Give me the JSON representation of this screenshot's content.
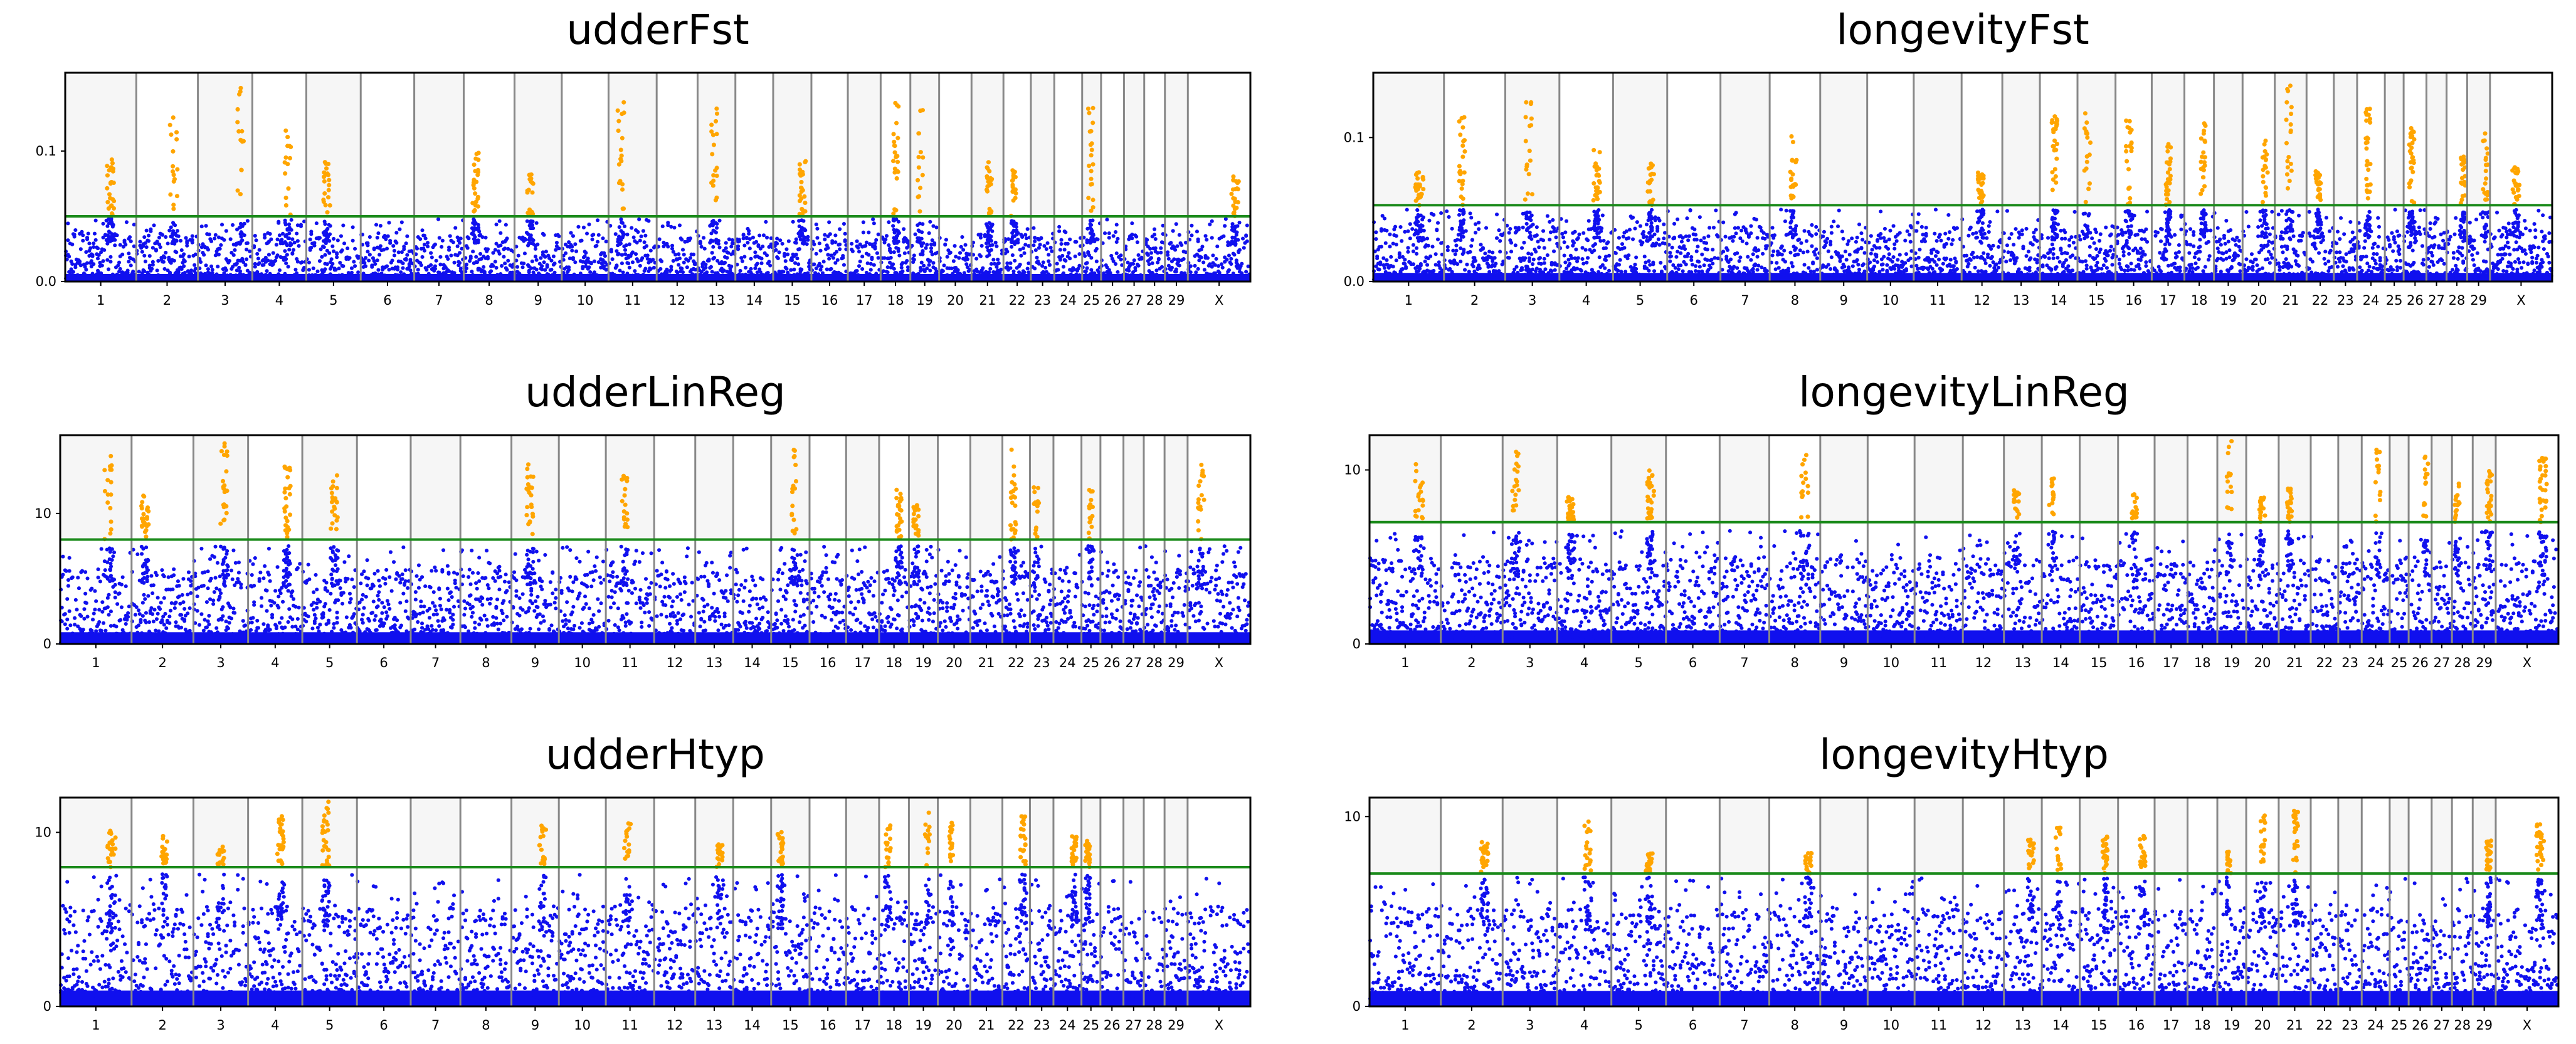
{
  "figure": {
    "colors": {
      "below_threshold": "#1010ee",
      "above_threshold": "#ffa500",
      "threshold_line": "#1a8a1a",
      "alt_chromosome_band": "#f6f6f6",
      "separator": "#888888"
    }
  },
  "chart_data": [
    {
      "type": "scatter",
      "title": "udderFst",
      "xlabel": "",
      "ylabel": "",
      "categories": [
        "1",
        "2",
        "3",
        "4",
        "5",
        "6",
        "7",
        "8",
        "9",
        "10",
        "11",
        "12",
        "13",
        "14",
        "15",
        "16",
        "17",
        "18",
        "19",
        "20",
        "21",
        "22",
        "23",
        "24",
        "25",
        "26",
        "27",
        "28",
        "29",
        "X"
      ],
      "chromosome_relative_lengths": [
        158,
        137,
        121,
        120,
        121,
        119,
        110,
        113,
        105,
        104,
        107,
        91,
        84,
        84,
        85,
        81,
        73,
        66,
        64,
        72,
        71,
        61,
        52,
        62,
        42,
        51,
        45,
        46,
        51,
        139
      ],
      "yticks": [
        "0.0",
        "0.1"
      ],
      "ylim": [
        0,
        0.16
      ],
      "threshold": 0.05,
      "grid": false,
      "typical_max": 0.048,
      "peak_chromosomes": [
        "1",
        "2",
        "3",
        "4",
        "5",
        "8",
        "9",
        "11",
        "13",
        "15",
        "18",
        "19",
        "21",
        "22",
        "25",
        "X"
      ]
    },
    {
      "type": "scatter",
      "title": "longevityFst",
      "xlabel": "",
      "ylabel": "",
      "categories": [
        "1",
        "2",
        "3",
        "4",
        "5",
        "6",
        "7",
        "8",
        "9",
        "10",
        "11",
        "12",
        "13",
        "14",
        "15",
        "16",
        "17",
        "18",
        "19",
        "20",
        "21",
        "22",
        "23",
        "24",
        "25",
        "26",
        "27",
        "28",
        "29",
        "X"
      ],
      "chromosome_relative_lengths": [
        158,
        137,
        121,
        120,
        121,
        119,
        110,
        113,
        105,
        104,
        107,
        91,
        84,
        84,
        85,
        81,
        73,
        66,
        64,
        72,
        71,
        61,
        52,
        62,
        42,
        51,
        45,
        46,
        51,
        139
      ],
      "yticks": [
        "0.0",
        "0.1"
      ],
      "ylim": [
        0,
        0.145
      ],
      "threshold": 0.053,
      "grid": false,
      "typical_max": 0.05,
      "peak_chromosomes": [
        "1",
        "2",
        "3",
        "4",
        "5",
        "8",
        "12",
        "14",
        "15",
        "16",
        "17",
        "18",
        "20",
        "21",
        "22",
        "24",
        "26",
        "28",
        "29",
        "X"
      ]
    },
    {
      "type": "scatter",
      "title": "udderLinReg",
      "xlabel": "",
      "ylabel": "",
      "categories": [
        "1",
        "2",
        "3",
        "4",
        "5",
        "6",
        "7",
        "8",
        "9",
        "10",
        "11",
        "12",
        "13",
        "14",
        "15",
        "16",
        "17",
        "18",
        "19",
        "20",
        "21",
        "22",
        "23",
        "24",
        "25",
        "26",
        "27",
        "28",
        "29",
        "X"
      ],
      "chromosome_relative_lengths": [
        158,
        137,
        121,
        120,
        121,
        119,
        110,
        113,
        105,
        104,
        107,
        91,
        84,
        84,
        85,
        81,
        73,
        66,
        64,
        72,
        71,
        61,
        52,
        62,
        42,
        51,
        45,
        46,
        51,
        139
      ],
      "yticks": [
        "0",
        "10"
      ],
      "ylim": [
        0,
        16
      ],
      "threshold": 8,
      "grid": false,
      "typical_max": 7.5,
      "peak_chromosomes": [
        "1",
        "2",
        "3",
        "4",
        "5",
        "9",
        "11",
        "15",
        "18",
        "19",
        "22",
        "23",
        "25",
        "X"
      ]
    },
    {
      "type": "scatter",
      "title": "longevityLinReg",
      "xlabel": "",
      "ylabel": "",
      "categories": [
        "1",
        "2",
        "3",
        "4",
        "5",
        "6",
        "7",
        "8",
        "9",
        "10",
        "11",
        "12",
        "13",
        "14",
        "15",
        "16",
        "17",
        "18",
        "19",
        "20",
        "21",
        "22",
        "23",
        "24",
        "25",
        "26",
        "27",
        "28",
        "29",
        "X"
      ],
      "chromosome_relative_lengths": [
        158,
        137,
        121,
        120,
        121,
        119,
        110,
        113,
        105,
        104,
        107,
        91,
        84,
        84,
        85,
        81,
        73,
        66,
        64,
        72,
        71,
        61,
        52,
        62,
        42,
        51,
        45,
        46,
        51,
        139
      ],
      "yticks": [
        "0",
        "10"
      ],
      "ylim": [
        0,
        12
      ],
      "threshold": 7,
      "grid": false,
      "typical_max": 6.5,
      "peak_chromosomes": [
        "1",
        "3",
        "4",
        "5",
        "8",
        "13",
        "14",
        "16",
        "19",
        "20",
        "21",
        "24",
        "26",
        "28",
        "29",
        "X"
      ]
    },
    {
      "type": "scatter",
      "title": "udderHtyp",
      "xlabel": "",
      "ylabel": "",
      "categories": [
        "1",
        "2",
        "3",
        "4",
        "5",
        "6",
        "7",
        "8",
        "9",
        "10",
        "11",
        "12",
        "13",
        "14",
        "15",
        "16",
        "17",
        "18",
        "19",
        "20",
        "21",
        "22",
        "23",
        "24",
        "25",
        "26",
        "27",
        "28",
        "29",
        "X"
      ],
      "chromosome_relative_lengths": [
        158,
        137,
        121,
        120,
        121,
        119,
        110,
        113,
        105,
        104,
        107,
        91,
        84,
        84,
        85,
        81,
        73,
        66,
        64,
        72,
        71,
        61,
        52,
        62,
        42,
        51,
        45,
        46,
        51,
        139
      ],
      "yticks": [
        "0",
        "10"
      ],
      "ylim": [
        0,
        12
      ],
      "threshold": 8,
      "grid": false,
      "typical_max": 7.6,
      "peak_chromosomes": [
        "1",
        "2",
        "3",
        "4",
        "5",
        "9",
        "11",
        "13",
        "15",
        "18",
        "19",
        "20",
        "22",
        "24",
        "25"
      ]
    },
    {
      "type": "scatter",
      "title": "longevityHtyp",
      "xlabel": "",
      "ylabel": "",
      "categories": [
        "1",
        "2",
        "3",
        "4",
        "5",
        "6",
        "7",
        "8",
        "9",
        "10",
        "11",
        "12",
        "13",
        "14",
        "15",
        "16",
        "17",
        "18",
        "19",
        "20",
        "21",
        "22",
        "23",
        "24",
        "25",
        "26",
        "27",
        "28",
        "29",
        "X"
      ],
      "chromosome_relative_lengths": [
        158,
        137,
        121,
        120,
        121,
        119,
        110,
        113,
        105,
        104,
        107,
        91,
        84,
        84,
        85,
        81,
        73,
        66,
        64,
        72,
        71,
        61,
        52,
        62,
        42,
        51,
        45,
        46,
        51,
        139
      ],
      "yticks": [
        "0",
        "10"
      ],
      "ylim": [
        0,
        11
      ],
      "threshold": 7,
      "grid": false,
      "typical_max": 6.8,
      "peak_chromosomes": [
        "2",
        "4",
        "5",
        "8",
        "13",
        "14",
        "15",
        "16",
        "19",
        "20",
        "21",
        "29",
        "X"
      ]
    }
  ]
}
